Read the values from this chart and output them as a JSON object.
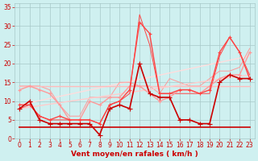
{
  "xlabel": "Vent moyen/en rafales ( km/h )",
  "background_color": "#cff0f0",
  "grid_color": "#a8c8c8",
  "text_color": "#cc0000",
  "xlim": [
    -0.5,
    23.5
  ],
  "ylim": [
    0,
    36
  ],
  "yticks": [
    0,
    5,
    10,
    15,
    20,
    25,
    30,
    35
  ],
  "xticks": [
    0,
    1,
    2,
    3,
    4,
    5,
    6,
    7,
    8,
    9,
    10,
    11,
    12,
    13,
    14,
    15,
    16,
    17,
    18,
    19,
    20,
    21,
    22,
    23
  ],
  "series": [
    {
      "x": [
        0,
        1,
        2,
        3,
        4,
        5,
        6,
        7,
        8,
        9,
        10,
        11,
        12,
        13,
        14,
        15,
        16,
        17,
        18,
        19,
        20,
        21,
        22,
        23
      ],
      "y": [
        8,
        10,
        5,
        4,
        4,
        4,
        4,
        4,
        1,
        8,
        9,
        8,
        20,
        12,
        11,
        11,
        5,
        5,
        4,
        4,
        15,
        17,
        16,
        16
      ],
      "color": "#cc0000",
      "lw": 1.2,
      "marker": "+",
      "ms": 4,
      "zorder": 5
    },
    {
      "x": [
        0,
        1,
        2,
        3,
        4,
        5,
        6,
        7,
        8,
        9,
        10,
        11,
        12,
        13,
        14,
        15,
        16,
        17,
        18,
        19,
        20,
        21,
        22,
        23
      ],
      "y": [
        3,
        3,
        3,
        3,
        3,
        3,
        3,
        3,
        3,
        3,
        3,
        3,
        3,
        3,
        3,
        3,
        3,
        3,
        3,
        3,
        3,
        3,
        3,
        3
      ],
      "color": "#cc0000",
      "lw": 1.2,
      "marker": null,
      "ms": 0,
      "zorder": 4
    },
    {
      "x": [
        0,
        1,
        2,
        3,
        4,
        5,
        6,
        7,
        8,
        9,
        10,
        11,
        12,
        13,
        14,
        15,
        16,
        17,
        18,
        19,
        20,
        21,
        22,
        23
      ],
      "y": [
        9,
        9,
        6,
        5,
        6,
        5,
        5,
        5,
        4,
        9,
        10,
        13,
        31,
        28,
        12,
        12,
        13,
        13,
        12,
        13,
        23,
        27,
        23,
        16
      ],
      "color": "#ff4444",
      "lw": 1.0,
      "marker": "+",
      "ms": 3,
      "zorder": 4
    },
    {
      "x": [
        0,
        1,
        2,
        3,
        4,
        5,
        6,
        7,
        8,
        9,
        10,
        11,
        12,
        13,
        14,
        15,
        16,
        17,
        18,
        19,
        20,
        21,
        22,
        23
      ],
      "y": [
        8,
        9,
        6,
        5,
        5,
        5,
        5,
        5,
        4,
        9,
        10,
        12,
        33,
        25,
        12,
        12,
        12,
        12,
        12,
        12,
        22,
        27,
        23,
        17
      ],
      "color": "#ff4444",
      "lw": 0.7,
      "marker": null,
      "ms": 0,
      "zorder": 3
    },
    {
      "x": [
        0,
        1,
        2,
        3,
        4,
        5,
        6,
        7,
        8,
        9,
        10,
        11,
        12,
        13,
        14,
        15,
        16,
        17,
        18,
        19,
        20,
        21,
        22,
        23
      ],
      "y": [
        13,
        14,
        13,
        12,
        9,
        5,
        5,
        10,
        9,
        11,
        11,
        14,
        14,
        12,
        10,
        11,
        13,
        13,
        12,
        14,
        16,
        17,
        17,
        23
      ],
      "color": "#ff9999",
      "lw": 1.0,
      "marker": "+",
      "ms": 3,
      "zorder": 3
    },
    {
      "x": [
        0,
        1,
        2,
        3,
        4,
        5,
        6,
        7,
        8,
        9,
        10,
        11,
        12,
        13,
        14,
        15,
        16,
        17,
        18,
        19,
        20,
        21,
        22,
        23
      ],
      "y": [
        14,
        14,
        14,
        13,
        9,
        6,
        6,
        11,
        11,
        11,
        15,
        15,
        14,
        14,
        12,
        16,
        15,
        14,
        14,
        16,
        18,
        18,
        19,
        24
      ],
      "color": "#ff9999",
      "lw": 0.7,
      "marker": null,
      "ms": 0,
      "zorder": 2
    },
    {
      "x": [
        0,
        23
      ],
      "y": [
        14,
        14
      ],
      "color": "#ffbbbb",
      "lw": 1.0,
      "marker": null,
      "ms": 0,
      "zorder": 2
    },
    {
      "x": [
        0,
        23
      ],
      "y": [
        8,
        17
      ],
      "color": "#ffcccc",
      "lw": 1.0,
      "marker": null,
      "ms": 0,
      "zorder": 2
    },
    {
      "x": [
        0,
        23
      ],
      "y": [
        9,
        22
      ],
      "color": "#ffdddd",
      "lw": 1.0,
      "marker": null,
      "ms": 0,
      "zorder": 1
    }
  ]
}
